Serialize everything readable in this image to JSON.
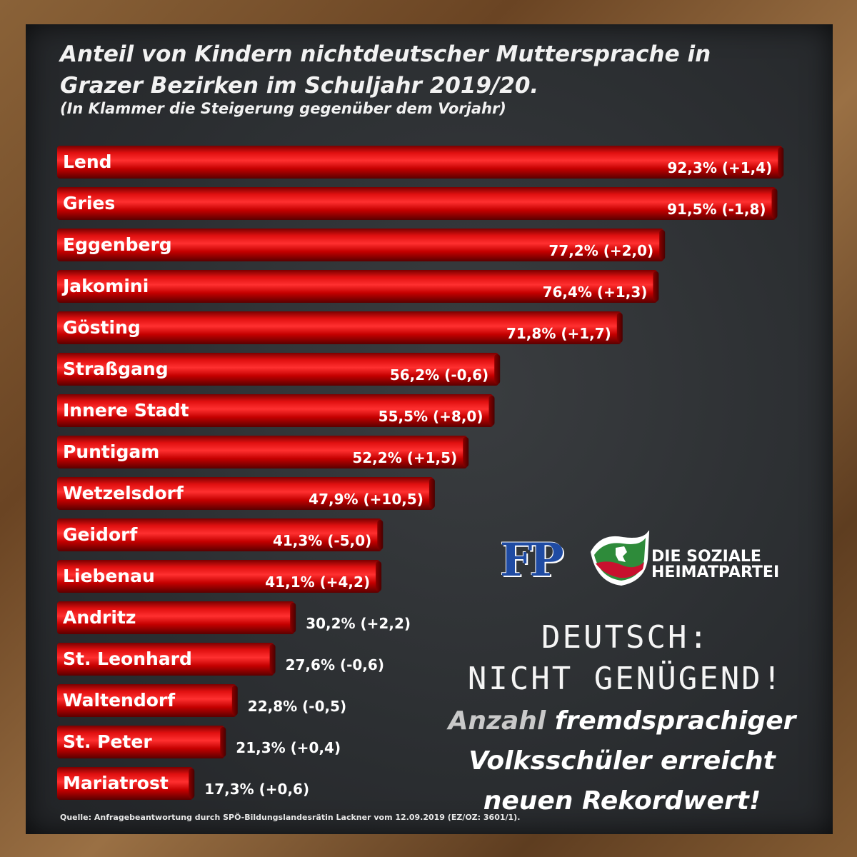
{
  "header": {
    "title_line1": "Anteil von Kindern nichtdeutscher Muttersprache in",
    "title_line2": "Grazer Bezirken im Schuljahr 2019/20.",
    "subtitle": "(In Klammer die Steigerung gegenüber dem Vorjahr)"
  },
  "chart_data": {
    "type": "bar",
    "orientation": "horizontal",
    "title": "Anteil von Kindern nichtdeutscher Muttersprache in Grazer Bezirken im Schuljahr 2019/20.",
    "subtitle": "(In Klammer die Steigerung gegenüber dem Vorjahr)",
    "xlabel": "",
    "ylabel": "",
    "xlim": [
      0,
      100
    ],
    "grid": false,
    "categories": [
      "Lend",
      "Gries",
      "Eggenberg",
      "Jakomini",
      "Gösting",
      "Straßgang",
      "Innere Stadt",
      "Puntigam",
      "Wetzelsdorf",
      "Geidorf",
      "Liebenau",
      "Andritz",
      "St. Leonhard",
      "Waltendorf",
      "St. Peter",
      "Mariatrost"
    ],
    "values": [
      92.3,
      91.5,
      77.2,
      76.4,
      71.8,
      56.2,
      55.5,
      52.2,
      47.9,
      41.3,
      41.1,
      30.2,
      27.6,
      22.8,
      21.3,
      17.3
    ],
    "labels": [
      "92,3% (+1,4)",
      "91,5% (-1,8)",
      "77,2% (+2,0)",
      "76,4% (+1,3)",
      "71,8% (+1,7)",
      "56,2% (-0,6)",
      "55,5% (+8,0)",
      "52,2% (+1,5)",
      "47,9% (+10,5)",
      "41,3% (-5,0)",
      "41,1% (+4,2)",
      "30,2% (+2,2)",
      "27,6% (-0,6)",
      "22,8% (-0,5)",
      "21,3% (+0,4)",
      "17,3% (+0,6)"
    ],
    "label_inside": [
      true,
      true,
      true,
      true,
      true,
      true,
      true,
      true,
      true,
      true,
      true,
      false,
      false,
      false,
      false,
      false
    ],
    "bar_color": "#d40000"
  },
  "logo": {
    "letters": "FP",
    "line1": "DIE SOZIALE",
    "line2": "HEIMATPARTEI",
    "blue": "#1f4ba3",
    "green": "#2e8b3a",
    "red": "#c8102e"
  },
  "slogan": {
    "line1": "DEUTSCH:",
    "line2": "NICHT GENÜGEND!",
    "sub_grey": "Anzahl",
    "sub_rest1": " fremdsprachiger",
    "sub_line2": "Volksschüler erreicht",
    "sub_line3": "neuen Rekordwert!"
  },
  "source": "Quelle: Anfragebeantwortung durch SPÖ-Bildungslandesrätin Lackner vom 12.09.2019 (EZ/OZ: 3601/1)."
}
